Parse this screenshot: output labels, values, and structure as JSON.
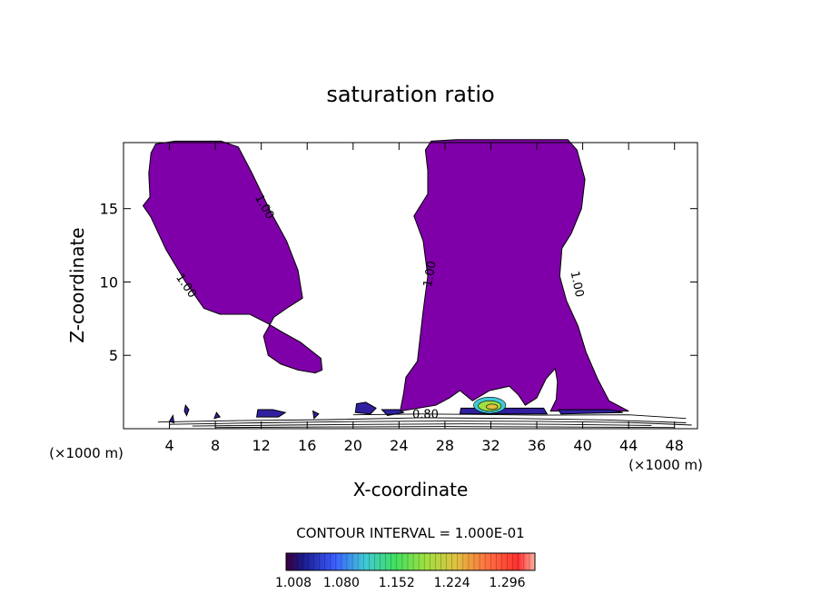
{
  "chart_data": {
    "type": "contour",
    "title": "saturation ratio",
    "xlabel": "X-coordinate",
    "ylabel": "Z-coordinate",
    "x_unit_left": "(×1000 m)",
    "x_unit_right": "(×1000 m)",
    "xlim": [
      0,
      50
    ],
    "ylim": [
      0,
      19.5
    ],
    "x_ticks": [
      4,
      8,
      12,
      16,
      20,
      24,
      28,
      32,
      36,
      40,
      44,
      48
    ],
    "y_ticks": [
      5,
      10,
      15
    ],
    "grid": false,
    "contour_interval_text": "CONTOUR INTERVAL = 1.000E-01",
    "contour_labels": [
      {
        "text": "1.00",
        "x": 12.0,
        "z": 15.0,
        "rotate": 60
      },
      {
        "text": "1.00",
        "x": 5.2,
        "z": 9.6,
        "rotate": 55
      },
      {
        "text": "1.00",
        "x": 27.0,
        "z": 10.5,
        "rotate": -80
      },
      {
        "text": "1.00",
        "x": 39.2,
        "z": 9.8,
        "rotate": 78
      },
      {
        "text": "0.80",
        "x": 26.3,
        "z": 0.7,
        "rotate": 0
      }
    ],
    "regions": [
      {
        "name": "cloud-left",
        "level": 1.0,
        "outline": [
          [
            2.4,
            18.8
          ],
          [
            2.8,
            19.4
          ],
          [
            4.5,
            19.6
          ],
          [
            8.5,
            19.6
          ],
          [
            10.0,
            19.2
          ],
          [
            11.2,
            17.4
          ],
          [
            12.8,
            14.8
          ],
          [
            14.2,
            12.8
          ],
          [
            15.2,
            10.8
          ],
          [
            15.6,
            8.9
          ],
          [
            14.4,
            8.3
          ],
          [
            13.1,
            7.6
          ],
          [
            12.2,
            6.3
          ],
          [
            12.6,
            5.0
          ],
          [
            13.7,
            4.4
          ],
          [
            15.2,
            4.0
          ],
          [
            16.7,
            3.8
          ],
          [
            17.3,
            4.0
          ],
          [
            17.2,
            4.8
          ],
          [
            15.4,
            5.9
          ],
          [
            13.8,
            6.6
          ],
          [
            12.5,
            7.2
          ],
          [
            11.0,
            7.8
          ],
          [
            8.4,
            7.8
          ],
          [
            7.0,
            8.2
          ],
          [
            5.4,
            10.0
          ],
          [
            3.7,
            12.2
          ],
          [
            2.4,
            14.4
          ],
          [
            1.7,
            15.2
          ],
          [
            2.3,
            15.8
          ],
          [
            2.2,
            17.4
          ]
        ]
      },
      {
        "name": "cloud-right",
        "level": 1.0,
        "outline": [
          [
            26.3,
            19.0
          ],
          [
            26.8,
            19.6
          ],
          [
            29.0,
            19.7
          ],
          [
            35.0,
            19.7
          ],
          [
            38.7,
            19.7
          ],
          [
            39.5,
            19.0
          ],
          [
            40.2,
            17.0
          ],
          [
            39.9,
            15.0
          ],
          [
            39.0,
            13.3
          ],
          [
            38.2,
            12.3
          ],
          [
            38.0,
            10.4
          ],
          [
            38.6,
            8.7
          ],
          [
            39.6,
            7.0
          ],
          [
            40.3,
            5.2
          ],
          [
            41.3,
            3.4
          ],
          [
            42.3,
            1.9
          ],
          [
            44.0,
            1.2
          ],
          [
            37.2,
            1.2
          ],
          [
            37.7,
            2.0
          ],
          [
            37.8,
            3.2
          ],
          [
            37.6,
            4.1
          ],
          [
            36.8,
            3.4
          ],
          [
            36.0,
            2.1
          ],
          [
            35.0,
            1.6
          ],
          [
            34.4,
            2.3
          ],
          [
            33.6,
            2.9
          ],
          [
            31.9,
            2.6
          ],
          [
            30.4,
            1.9
          ],
          [
            29.3,
            2.6
          ],
          [
            28.4,
            2.1
          ],
          [
            27.2,
            1.6
          ],
          [
            24.1,
            1.2
          ],
          [
            24.4,
            2.4
          ],
          [
            24.6,
            3.5
          ],
          [
            25.6,
            4.6
          ],
          [
            26.1,
            8.0
          ],
          [
            26.5,
            10.4
          ],
          [
            26.1,
            12.8
          ],
          [
            25.3,
            14.5
          ],
          [
            26.5,
            16.0
          ],
          [
            26.5,
            17.6
          ]
        ]
      },
      {
        "name": "patch-1",
        "level": 1.0,
        "outline": [
          [
            5.4,
            1.6
          ],
          [
            5.7,
            1.3
          ],
          [
            5.5,
            0.9
          ],
          [
            5.3,
            1.2
          ]
        ]
      },
      {
        "name": "patch-2",
        "level": 1.0,
        "outline": [
          [
            11.7,
            1.3
          ],
          [
            13.0,
            1.3
          ],
          [
            14.1,
            1.1
          ],
          [
            13.5,
            0.8
          ],
          [
            11.6,
            0.8
          ]
        ]
      },
      {
        "name": "patch-3",
        "level": 1.0,
        "outline": [
          [
            16.5,
            1.2
          ],
          [
            17.0,
            1.0
          ],
          [
            16.6,
            0.7
          ]
        ]
      },
      {
        "name": "patch-4",
        "level": 1.0,
        "outline": [
          [
            20.3,
            1.7
          ],
          [
            21.1,
            1.8
          ],
          [
            22.0,
            1.4
          ],
          [
            21.5,
            1.0
          ],
          [
            20.2,
            1.1
          ]
        ]
      },
      {
        "name": "patch-5",
        "level": 1.0,
        "outline": [
          [
            22.5,
            1.3
          ],
          [
            24.0,
            1.3
          ],
          [
            24.4,
            1.1
          ],
          [
            23.0,
            0.9
          ]
        ]
      },
      {
        "name": "strip-base",
        "level": 1.0,
        "outline": [
          [
            29.4,
            1.4
          ],
          [
            36.6,
            1.4
          ],
          [
            36.9,
            1.0
          ],
          [
            29.3,
            1.0
          ]
        ]
      },
      {
        "name": "patch-6",
        "level": 1.0,
        "outline": [
          [
            37.9,
            1.3
          ],
          [
            42.4,
            1.3
          ],
          [
            43.5,
            1.1
          ],
          [
            38.1,
            1.0
          ]
        ]
      },
      {
        "name": "patch-7",
        "level": 1.0,
        "outline": [
          [
            8.1,
            1.1
          ],
          [
            8.4,
            0.8
          ],
          [
            7.9,
            0.7
          ]
        ]
      },
      {
        "name": "patch-8",
        "level": 1.0,
        "outline": [
          [
            4.0,
            0.5
          ],
          [
            4.3,
            0.9
          ],
          [
            4.4,
            0.4
          ]
        ]
      }
    ],
    "supersat_core": [
      {
        "level": 1.08,
        "x": 31.9,
        "z": 1.6,
        "rx": 1.4,
        "rz": 0.55
      },
      {
        "level": 1.152,
        "x": 31.9,
        "z": 1.55,
        "rx": 1.0,
        "rz": 0.35
      },
      {
        "level": 1.224,
        "x": 32.1,
        "z": 1.5,
        "rx": 0.5,
        "rz": 0.18
      }
    ],
    "colorbar": {
      "min": 1.008,
      "max": 1.332,
      "tick_values": [
        1.008,
        1.08,
        1.152,
        1.224,
        1.296
      ],
      "tick_labels": [
        "1.008",
        "1.080",
        "1.152",
        "1.224",
        "1.296"
      ],
      "stops": [
        {
          "v": 1.008,
          "color": "#3a003a"
        },
        {
          "v": 1.03,
          "color": "#1a1a8c"
        },
        {
          "v": 1.07,
          "color": "#3a5aff"
        },
        {
          "v": 1.11,
          "color": "#40c8d8"
        },
        {
          "v": 1.15,
          "color": "#40e060"
        },
        {
          "v": 1.19,
          "color": "#a0e040"
        },
        {
          "v": 1.23,
          "color": "#e0c040"
        },
        {
          "v": 1.27,
          "color": "#ff7040"
        },
        {
          "v": 1.31,
          "color": "#ff3030"
        },
        {
          "v": 1.332,
          "color": "#ffb0a0"
        }
      ]
    },
    "colors": {
      "cloud_fill": "#7f00a8",
      "outline": "#000000",
      "patch_fill": "#3020a0"
    }
  }
}
